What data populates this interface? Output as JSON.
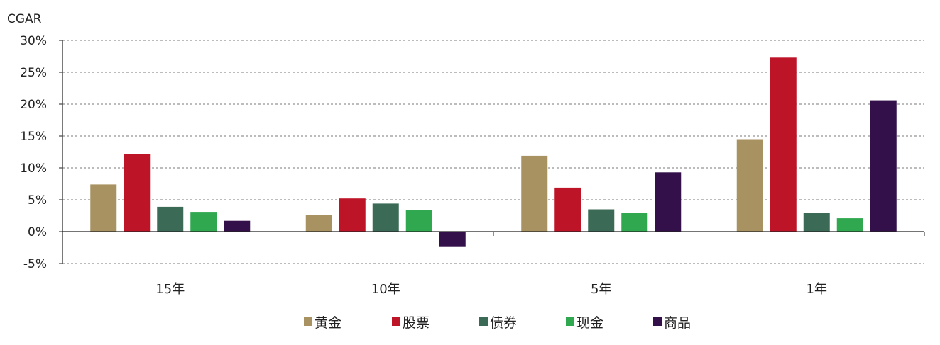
{
  "chart_data": {
    "type": "bar",
    "ylabel": "CGAR",
    "ylim": [
      -5,
      30
    ],
    "yticks": [
      -5,
      0,
      5,
      10,
      15,
      20,
      25,
      30
    ],
    "ytick_labels": [
      "-5%",
      "0%",
      "5%",
      "10%",
      "15%",
      "20%",
      "25%",
      "30%"
    ],
    "categories": [
      "15年",
      "10年",
      "5年",
      "1年"
    ],
    "grid": true,
    "legend_position": "bottom",
    "series": [
      {
        "name": "黄金",
        "color": "#A89262",
        "values": [
          7.4,
          2.6,
          11.9,
          14.5
        ]
      },
      {
        "name": "股票",
        "color": "#BE1428",
        "values": [
          12.2,
          5.2,
          6.9,
          27.3
        ]
      },
      {
        "name": "债券",
        "color": "#3B6B57",
        "values": [
          3.9,
          4.4,
          3.5,
          2.9
        ]
      },
      {
        "name": "现金",
        "color": "#2FA84F",
        "values": [
          3.1,
          3.4,
          2.9,
          2.1
        ]
      },
      {
        "name": "商品",
        "color": "#34104A",
        "values": [
          1.7,
          -2.3,
          9.3,
          20.6
        ]
      }
    ]
  }
}
